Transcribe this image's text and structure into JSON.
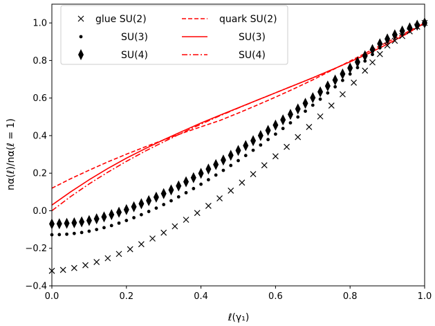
{
  "chart_data": {
    "type": "scatter",
    "xlabel": "ℓ(γ₁)",
    "ylabel": "nα(ℓ)/nα(ℓ = 1)",
    "xlim": [
      0.0,
      1.0
    ],
    "ylim": [
      -0.4,
      1.1
    ],
    "xticks": [
      "0.0",
      "0.2",
      "0.4",
      "0.6",
      "0.8",
      "1.0"
    ],
    "yticks": [
      "−0.4",
      "−0.2",
      "0.0",
      "0.2",
      "0.4",
      "0.6",
      "0.8",
      "1.0"
    ],
    "grid": false,
    "legend_position": "top-left",
    "glue_color": "#000000",
    "quark_color": "#ff0000",
    "legend": {
      "glue_su2": "glue SU(2)",
      "glue_su3": "SU(3)",
      "glue_su4": "SU(4)",
      "quark_su2": "quark SU(2)",
      "quark_su3": "SU(3)",
      "quark_su4": "SU(4)"
    },
    "series": [
      {
        "name": "glue SU(2)",
        "kind": "glue",
        "marker": "x",
        "x": [
          0.0,
          0.03,
          0.06,
          0.09,
          0.12,
          0.15,
          0.18,
          0.21,
          0.24,
          0.27,
          0.3,
          0.33,
          0.36,
          0.39,
          0.42,
          0.45,
          0.48,
          0.51,
          0.54,
          0.57,
          0.6,
          0.63,
          0.66,
          0.69,
          0.72,
          0.75,
          0.78,
          0.81,
          0.84,
          0.86,
          0.88,
          0.9,
          0.92,
          0.94,
          0.96,
          0.98,
          1.0
        ],
        "y": [
          -0.32,
          -0.315,
          -0.305,
          -0.29,
          -0.273,
          -0.253,
          -0.23,
          -0.205,
          -0.178,
          -0.148,
          -0.117,
          -0.083,
          -0.048,
          -0.012,
          0.026,
          0.066,
          0.107,
          0.15,
          0.195,
          0.242,
          0.29,
          0.34,
          0.392,
          0.446,
          0.502,
          0.56,
          0.62,
          0.682,
          0.746,
          0.79,
          0.834,
          0.88,
          0.905,
          0.93,
          0.955,
          0.98,
          1.0
        ]
      },
      {
        "name": "SU(3)",
        "kind": "glue",
        "marker": "dot",
        "x": [
          0.0,
          0.02,
          0.04,
          0.06,
          0.08,
          0.1,
          0.12,
          0.14,
          0.16,
          0.18,
          0.2,
          0.22,
          0.24,
          0.26,
          0.28,
          0.3,
          0.32,
          0.34,
          0.36,
          0.38,
          0.4,
          0.42,
          0.44,
          0.46,
          0.48,
          0.5,
          0.52,
          0.54,
          0.56,
          0.58,
          0.6,
          0.62,
          0.64,
          0.66,
          0.68,
          0.7,
          0.72,
          0.74,
          0.76,
          0.78,
          0.8,
          0.82,
          0.84,
          0.86,
          0.88,
          0.9,
          0.92,
          0.94,
          0.96,
          0.98,
          1.0
        ],
        "y": [
          -0.128,
          -0.127,
          -0.125,
          -0.121,
          -0.116,
          -0.109,
          -0.1,
          -0.09,
          -0.079,
          -0.066,
          -0.052,
          -0.037,
          -0.021,
          -0.004,
          0.014,
          0.033,
          0.053,
          0.074,
          0.096,
          0.118,
          0.141,
          0.165,
          0.19,
          0.215,
          0.241,
          0.267,
          0.294,
          0.322,
          0.35,
          0.379,
          0.408,
          0.438,
          0.468,
          0.499,
          0.53,
          0.562,
          0.594,
          0.627,
          0.66,
          0.694,
          0.728,
          0.762,
          0.797,
          0.832,
          0.867,
          0.9,
          0.925,
          0.95,
          0.97,
          0.985,
          1.0
        ]
      },
      {
        "name": "SU(4)",
        "kind": "glue",
        "marker": "diamond",
        "x": [
          0.0,
          0.02,
          0.04,
          0.06,
          0.08,
          0.1,
          0.12,
          0.14,
          0.16,
          0.18,
          0.2,
          0.22,
          0.24,
          0.26,
          0.28,
          0.3,
          0.32,
          0.34,
          0.36,
          0.38,
          0.4,
          0.42,
          0.44,
          0.46,
          0.48,
          0.5,
          0.52,
          0.54,
          0.56,
          0.58,
          0.6,
          0.62,
          0.64,
          0.66,
          0.68,
          0.7,
          0.72,
          0.74,
          0.76,
          0.78,
          0.8,
          0.82,
          0.84,
          0.86,
          0.88,
          0.9,
          0.92,
          0.94,
          0.96,
          0.98,
          1.0
        ],
        "y": [
          -0.07,
          -0.069,
          -0.067,
          -0.064,
          -0.059,
          -0.052,
          -0.043,
          -0.033,
          -0.021,
          -0.008,
          0.006,
          0.021,
          0.037,
          0.054,
          0.072,
          0.091,
          0.111,
          0.132,
          0.154,
          0.176,
          0.199,
          0.222,
          0.246,
          0.27,
          0.295,
          0.321,
          0.347,
          0.373,
          0.4,
          0.428,
          0.456,
          0.484,
          0.513,
          0.542,
          0.572,
          0.602,
          0.633,
          0.664,
          0.696,
          0.728,
          0.76,
          0.792,
          0.825,
          0.858,
          0.889,
          0.915,
          0.937,
          0.957,
          0.974,
          0.988,
          1.0
        ]
      }
    ],
    "lines": [
      {
        "name": "quark SU(2)",
        "kind": "quark",
        "dash": "dashed",
        "x": [
          0.0,
          0.05,
          0.1,
          0.15,
          0.2,
          0.25,
          0.3,
          0.35,
          0.4,
          0.45,
          0.5,
          0.55,
          0.6,
          0.65,
          0.7,
          0.75,
          0.8,
          0.85,
          0.9,
          0.95,
          1.0
        ],
        "y": [
          0.12,
          0.17,
          0.216,
          0.26,
          0.301,
          0.34,
          0.377,
          0.413,
          0.447,
          0.48,
          0.52,
          0.562,
          0.605,
          0.65,
          0.697,
          0.747,
          0.797,
          0.848,
          0.898,
          0.948,
          1.0
        ]
      },
      {
        "name": "SU(3)",
        "kind": "quark",
        "dash": "solid",
        "x": [
          0.0,
          0.05,
          0.1,
          0.15,
          0.2,
          0.25,
          0.3,
          0.35,
          0.4,
          0.45,
          0.5,
          0.55,
          0.6,
          0.65,
          0.7,
          0.75,
          0.8,
          0.85,
          0.9,
          0.95,
          1.0
        ],
        "y": [
          0.03,
          0.1,
          0.165,
          0.225,
          0.28,
          0.33,
          0.378,
          0.423,
          0.467,
          0.508,
          0.548,
          0.588,
          0.628,
          0.668,
          0.708,
          0.75,
          0.793,
          0.838,
          0.887,
          0.94,
          1.0
        ]
      },
      {
        "name": "SU(4)",
        "kind": "quark",
        "dash": "dashdot",
        "x": [
          0.0,
          0.05,
          0.1,
          0.15,
          0.2,
          0.25,
          0.3,
          0.35,
          0.4,
          0.45,
          0.5,
          0.55,
          0.6,
          0.65,
          0.7,
          0.75,
          0.8,
          0.85,
          0.9,
          0.95,
          1.0
        ],
        "y": [
          0.0,
          0.075,
          0.143,
          0.205,
          0.263,
          0.317,
          0.367,
          0.415,
          0.461,
          0.505,
          0.547,
          0.588,
          0.628,
          0.668,
          0.708,
          0.75,
          0.793,
          0.838,
          0.887,
          0.94,
          1.0
        ]
      }
    ]
  }
}
